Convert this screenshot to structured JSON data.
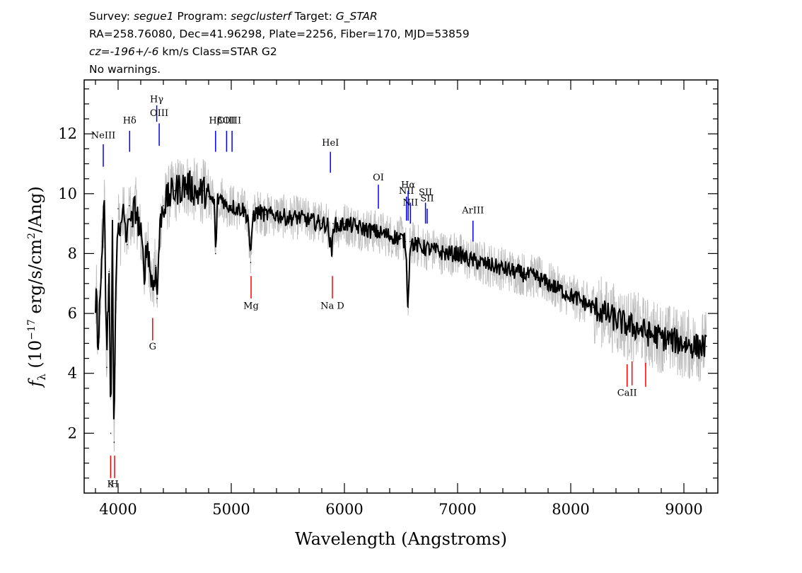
{
  "header": {
    "line1": [
      {
        "t": "Survey: ",
        "i": false
      },
      {
        "t": "segue1",
        "i": true
      },
      {
        "t": " Program: ",
        "i": false
      },
      {
        "t": "segclusterf",
        "i": true
      },
      {
        "t": " Target: ",
        "i": false
      },
      {
        "t": "G_STAR",
        "i": true
      }
    ],
    "line2": "RA=258.76080, Dec=41.96298, Plate=2256, Fiber=170, MJD=53859",
    "line3": [
      {
        "t": "cz=-196+/-6",
        "i": true
      },
      {
        "t": " km/s Class=STAR G2",
        "i": false
      }
    ],
    "line4": "No warnings."
  },
  "colors": {
    "flux": "#000000",
    "flux_raw": "#c0c0c0",
    "emission": "#0000ff",
    "absorption": "#ff0000",
    "axis": "#000000"
  },
  "chart_data": {
    "type": "line",
    "title": "",
    "xlabel": "Wavelength (Angstroms)",
    "ylabel": "f_λ (10^-17 erg/s/cm^2/Ang)",
    "ylabel_parts": {
      "f": "f",
      "sub": "λ",
      "pre": " (10",
      "exp1": "−17",
      "mid": " erg/s/cm",
      "exp2": "2",
      "post": "/Ang)"
    },
    "xlim": [
      3700,
      9300
    ],
    "ylim": [
      0,
      13.8
    ],
    "xticks": [
      4000,
      5000,
      6000,
      7000,
      8000,
      9000
    ],
    "yticks": [
      2,
      4,
      6,
      8,
      10,
      12
    ],
    "grid": false,
    "series": [
      {
        "role": "smoothed_flux",
        "x": [
          3800,
          3830,
          3860,
          3880,
          3900,
          3920,
          3935,
          3950,
          3965,
          3980,
          4000,
          4020,
          4050,
          4080,
          4100,
          4120,
          4150,
          4180,
          4200,
          4230,
          4260,
          4290,
          4310,
          4330,
          4345,
          4360,
          4380,
          4400,
          4450,
          4500,
          4550,
          4600,
          4650,
          4700,
          4750,
          4800,
          4850,
          4861,
          4880,
          4920,
          4950,
          5000,
          5050,
          5100,
          5150,
          5172,
          5190,
          5250,
          5300,
          5400,
          5500,
          5600,
          5700,
          5800,
          5850,
          5890,
          5900,
          5950,
          6000,
          6100,
          6200,
          6300,
          6400,
          6500,
          6540,
          6563,
          6580,
          6620,
          6700,
          6800,
          6900,
          7000,
          7100,
          7200,
          7300,
          7400,
          7500,
          7600,
          7700,
          7800,
          7900,
          8000,
          8100,
          8200,
          8300,
          8400,
          8500,
          8600,
          8700,
          8800,
          8900,
          9000,
          9100,
          9200
        ],
        "y": [
          6.4,
          5.2,
          8.4,
          9.2,
          4.2,
          7.4,
          2.0,
          8.6,
          1.7,
          6.8,
          9.5,
          8.6,
          9.4,
          8.3,
          9.6,
          8.9,
          9.6,
          9.0,
          8.6,
          7.4,
          8.4,
          7.2,
          6.9,
          7.6,
          6.5,
          8.2,
          9.3,
          9.6,
          9.9,
          10.1,
          10.2,
          10.3,
          10.2,
          10.0,
          10.1,
          9.9,
          9.7,
          8.0,
          9.8,
          9.9,
          9.6,
          9.6,
          9.5,
          9.5,
          9.2,
          7.7,
          9.3,
          9.4,
          9.3,
          9.3,
          9.2,
          9.2,
          9.1,
          9.0,
          9.0,
          7.9,
          9.0,
          8.9,
          9.0,
          8.9,
          8.8,
          8.7,
          8.6,
          8.5,
          8.4,
          6.2,
          8.4,
          8.3,
          8.2,
          8.1,
          8.0,
          8.0,
          7.8,
          7.7,
          7.6,
          7.5,
          7.4,
          7.3,
          7.2,
          7.0,
          6.8,
          6.6,
          6.4,
          6.2,
          6.0,
          5.8,
          5.6,
          5.5,
          5.3,
          5.2,
          5.1,
          5.0,
          4.9,
          4.9
        ]
      }
    ],
    "lines": [
      {
        "label": "NeIII",
        "wave": 3869,
        "kind": "emission",
        "lbl_y": 11.85,
        "top": 11.65,
        "bottom": 10.9
      },
      {
        "label": "Hδ",
        "wave": 4102,
        "kind": "emission",
        "lbl_y": 12.35,
        "top": 12.1,
        "bottom": 11.4
      },
      {
        "label": "Hγ",
        "wave": 4341,
        "kind": "emission",
        "lbl_y": 13.05,
        "top": 12.95,
        "bottom": 12.4
      },
      {
        "label": "OIII",
        "wave": 4363,
        "kind": "emission",
        "lbl_y": 12.6,
        "top": 12.35,
        "bottom": 11.6
      },
      {
        "label": "Hβ",
        "wave": 4861,
        "kind": "emission",
        "lbl_y": 12.35,
        "top": 12.1,
        "bottom": 11.4
      },
      {
        "label": "OIII",
        "wave": 4959,
        "kind": "emission",
        "lbl_y": 12.35,
        "top": 12.1,
        "bottom": 11.4
      },
      {
        "label": "OIII",
        "wave": 5007,
        "kind": "emission",
        "lbl_y": 12.35,
        "top": 12.1,
        "bottom": 11.4
      },
      {
        "label": "HeI",
        "wave": 5876,
        "kind": "emission",
        "lbl_y": 11.6,
        "top": 11.4,
        "bottom": 10.7
      },
      {
        "label": "OI",
        "wave": 6300,
        "kind": "emission",
        "lbl_y": 10.45,
        "top": 10.3,
        "bottom": 9.5
      },
      {
        "label": "NII",
        "wave": 6548,
        "kind": "emission",
        "lbl_y": 10.0,
        "top": 9.9,
        "bottom": 9.1
      },
      {
        "label": "Hα",
        "wave": 6563,
        "kind": "emission",
        "lbl_y": 10.2,
        "top": 10.1,
        "bottom": 9.1
      },
      {
        "label": "NII",
        "wave": 6583,
        "kind": "emission",
        "lbl_y": 9.6,
        "top": 9.7,
        "bottom": 9.0
      },
      {
        "label": "SII",
        "wave": 6716,
        "kind": "emission",
        "lbl_y": 9.95,
        "top": 9.7,
        "bottom": 9.0
      },
      {
        "label": "SII",
        "wave": 6731,
        "kind": "emission",
        "lbl_y": 9.75,
        "top": 9.5,
        "bottom": 9.0
      },
      {
        "label": "ArIII",
        "wave": 7136,
        "kind": "emission",
        "lbl_y": 9.35,
        "top": 9.1,
        "bottom": 8.4
      },
      {
        "label": "K",
        "wave": 3934,
        "kind": "absorption",
        "lbl_y": 0.2,
        "top": 1.25,
        "bottom": 0.5
      },
      {
        "label": "H",
        "wave": 3969,
        "kind": "absorption",
        "lbl_y": 0.2,
        "top": 1.25,
        "bottom": 0.5
      },
      {
        "label": "G",
        "wave": 4305,
        "kind": "absorption",
        "lbl_y": 4.8,
        "top": 5.85,
        "bottom": 5.1
      },
      {
        "label": "Mg",
        "wave": 5175,
        "kind": "absorption",
        "lbl_y": 6.15,
        "top": 7.25,
        "bottom": 6.5
      },
      {
        "label": "Na D",
        "wave": 5894,
        "kind": "absorption",
        "lbl_y": 6.15,
        "top": 7.25,
        "bottom": 6.5
      },
      {
        "label": "CaII",
        "wave": 8498,
        "kind": "absorption",
        "lbl_y": 3.25,
        "top": 4.3,
        "bottom": 3.55
      },
      {
        "label": "",
        "wave": 8542,
        "kind": "absorption",
        "lbl_y": 3.25,
        "top": 4.4,
        "bottom": 3.6
      },
      {
        "label": "",
        "wave": 8662,
        "kind": "absorption",
        "lbl_y": 3.25,
        "top": 4.35,
        "bottom": 3.55
      }
    ]
  }
}
